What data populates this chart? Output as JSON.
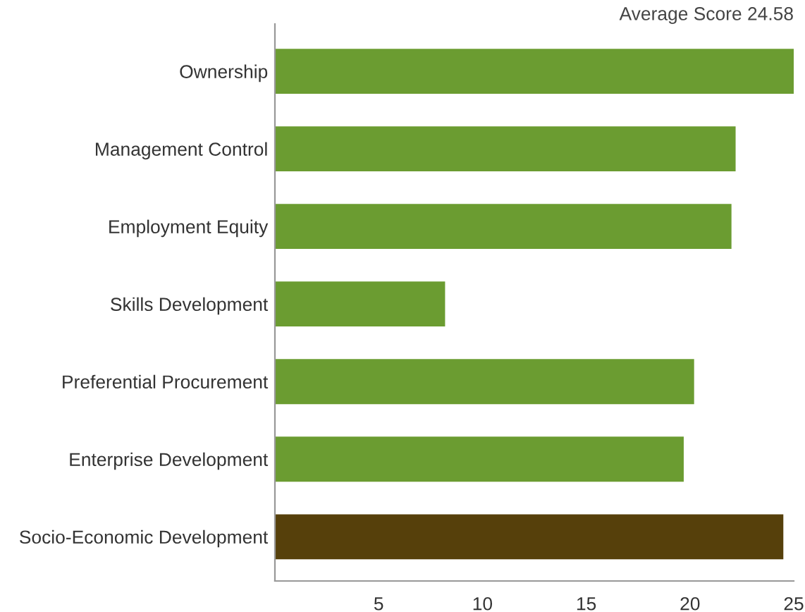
{
  "chart_data": {
    "type": "bar",
    "orientation": "horizontal",
    "categories": [
      "Ownership",
      "Management Control",
      "Employment Equity",
      "Skills Development",
      "Preferential Procurement",
      "Enterprise Development",
      "Socio-Economic Development"
    ],
    "values": [
      25.0,
      22.2,
      22.0,
      8.2,
      20.2,
      19.7,
      24.5
    ],
    "colors": [
      "#6b9c31",
      "#6b9c31",
      "#6b9c31",
      "#6b9c31",
      "#6b9c31",
      "#6b9c31",
      "#56400b"
    ],
    "xlim": [
      0,
      25
    ],
    "xticks": [
      5,
      10,
      15,
      20,
      25
    ],
    "annotations": [
      "Average Score 24.58"
    ],
    "grid": false,
    "legend": false
  }
}
